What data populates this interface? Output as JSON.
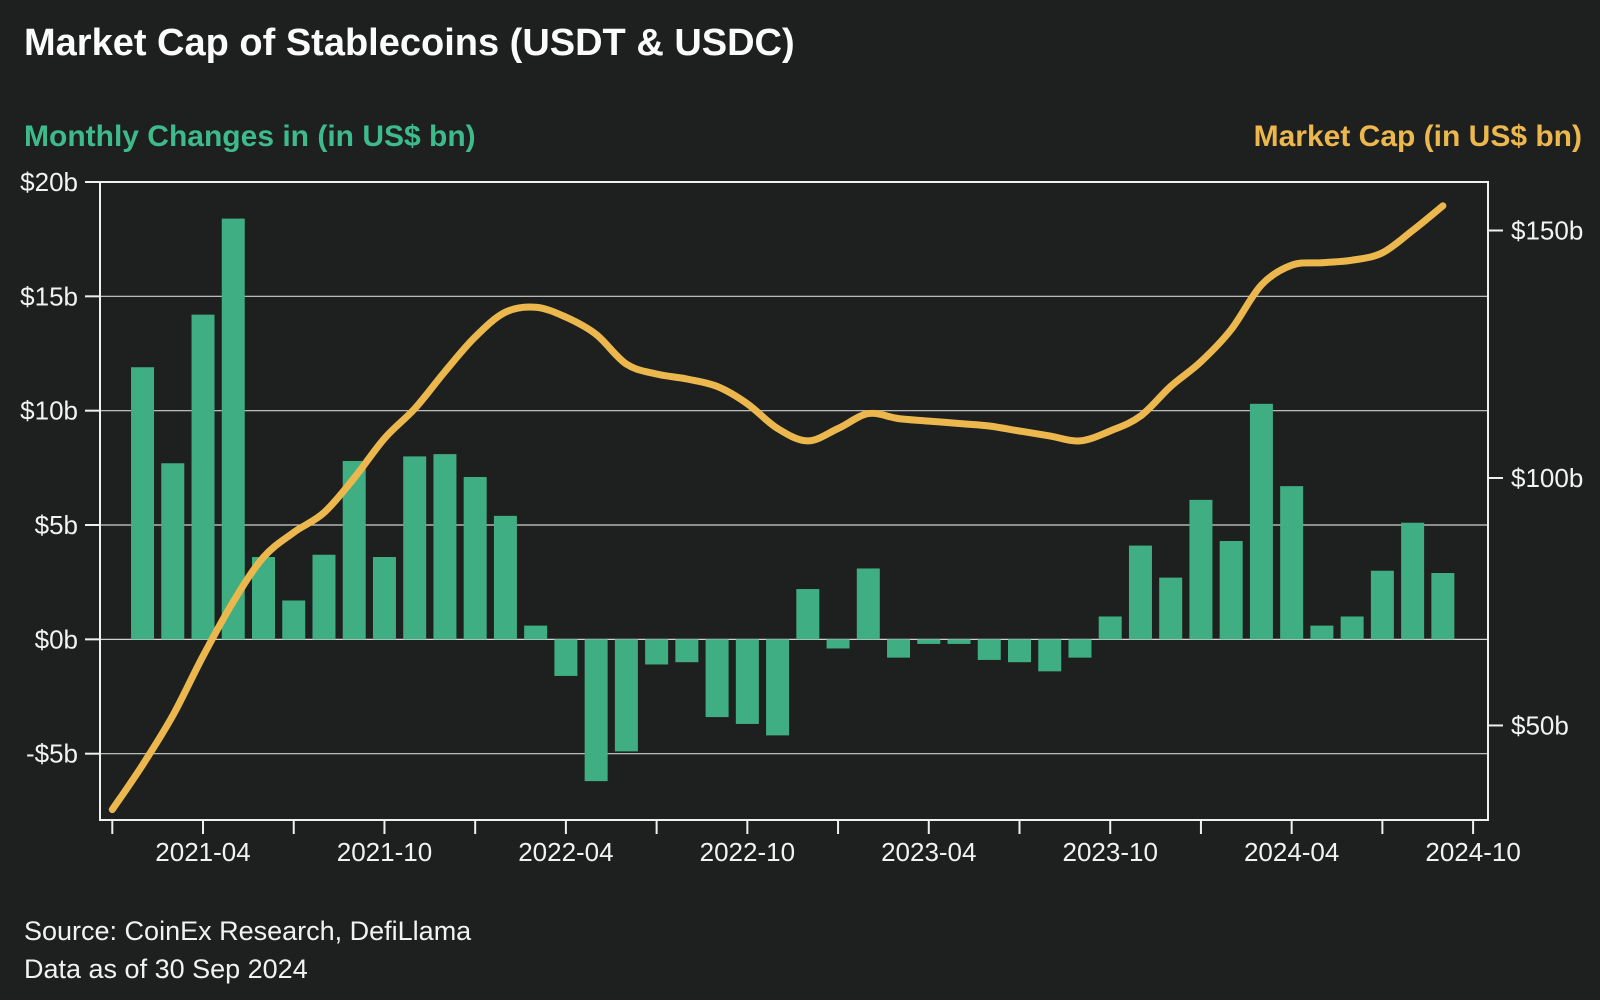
{
  "header": {
    "title": "Market Cap of Stablecoins (USDT & USDC)",
    "left_series_label": "Monthly Changes in (in US$ bn)",
    "right_series_label": "Market Cap (in US$ bn)"
  },
  "footer": {
    "source": "Source: CoinEx Research, DefiLlama",
    "as_of": "Data as of 30 Sep 2024"
  },
  "colors": {
    "background": "#1e201f",
    "bar": "#3fae82",
    "line": "#ecb84e",
    "grid": "#d0d0d0",
    "border": "#f0f0f0",
    "tick_text": "#f2f2f2",
    "green_label": "#3dbb8c",
    "gold_label": "#ecb84e"
  },
  "chart_data": {
    "type": "bar+line dual-axis",
    "title": "Market Cap of Stablecoins (USDT & USDC)",
    "grid": "horizontal gridlines at left-axis ticks",
    "legend_position": "labels above chart (left green = bars, right gold = line)",
    "x_axis": {
      "domain_start": "2021-01",
      "domain_end": "2024-10",
      "labeled_ticks": [
        "2021-04",
        "2021-10",
        "2022-04",
        "2022-10",
        "2023-04",
        "2023-10",
        "2024-04",
        "2024-10"
      ],
      "minor_ticks": [
        "2021-01",
        "2021-07",
        "2022-01",
        "2022-07",
        "2023-01",
        "2023-07",
        "2024-01",
        "2024-07"
      ]
    },
    "left_axis": {
      "title": "Monthly Changes in (in US$ bn)",
      "tick_labels": [
        "$20b",
        "$15b",
        "$10b",
        "$5b",
        "$0b",
        "-$5b"
      ],
      "tick_values": [
        20,
        15,
        10,
        5,
        0,
        -5
      ],
      "range": [
        -7.9,
        20
      ]
    },
    "right_axis": {
      "title": "Market Cap (in US$ bn)",
      "tick_labels": [
        "$150b",
        "$100b",
        "$50b"
      ],
      "tick_values": [
        150,
        100,
        50
      ],
      "range": [
        30.9,
        159.8
      ]
    },
    "bars": {
      "name": "Monthly Changes in (in US$ bn)",
      "axis": "left",
      "unit": "US$ bn",
      "data": [
        {
          "month": "2021-02",
          "value": 11.9
        },
        {
          "month": "2021-03",
          "value": 7.7
        },
        {
          "month": "2021-04",
          "value": 14.2
        },
        {
          "month": "2021-05",
          "value": 18.4
        },
        {
          "month": "2021-06",
          "value": 3.6
        },
        {
          "month": "2021-07",
          "value": 1.7
        },
        {
          "month": "2021-08",
          "value": 3.7
        },
        {
          "month": "2021-09",
          "value": 7.8
        },
        {
          "month": "2021-10",
          "value": 3.6
        },
        {
          "month": "2021-11",
          "value": 8.0
        },
        {
          "month": "2021-12",
          "value": 8.1
        },
        {
          "month": "2022-01",
          "value": 7.1
        },
        {
          "month": "2022-02",
          "value": 5.4
        },
        {
          "month": "2022-03",
          "value": 0.6
        },
        {
          "month": "2022-04",
          "value": -1.6
        },
        {
          "month": "2022-05",
          "value": -6.2
        },
        {
          "month": "2022-06",
          "value": -4.9
        },
        {
          "month": "2022-07",
          "value": -1.1
        },
        {
          "month": "2022-08",
          "value": -1.0
        },
        {
          "month": "2022-09",
          "value": -3.4
        },
        {
          "month": "2022-10",
          "value": -3.7
        },
        {
          "month": "2022-11",
          "value": -4.2
        },
        {
          "month": "2022-12",
          "value": 2.2
        },
        {
          "month": "2023-01",
          "value": -0.4
        },
        {
          "month": "2023-02",
          "value": 3.1
        },
        {
          "month": "2023-03",
          "value": -0.8
        },
        {
          "month": "2023-04",
          "value": -0.2
        },
        {
          "month": "2023-05",
          "value": -0.2
        },
        {
          "month": "2023-06",
          "value": -0.9
        },
        {
          "month": "2023-07",
          "value": -1.0
        },
        {
          "month": "2023-08",
          "value": -1.4
        },
        {
          "month": "2023-09",
          "value": -0.8
        },
        {
          "month": "2023-10",
          "value": 1.0
        },
        {
          "month": "2023-11",
          "value": 4.1
        },
        {
          "month": "2023-12",
          "value": 2.7
        },
        {
          "month": "2024-01",
          "value": 6.1
        },
        {
          "month": "2024-02",
          "value": 4.3
        },
        {
          "month": "2024-03",
          "value": 10.3
        },
        {
          "month": "2024-04",
          "value": 6.7
        },
        {
          "month": "2024-05",
          "value": 0.6
        },
        {
          "month": "2024-06",
          "value": 1.0
        },
        {
          "month": "2024-07",
          "value": 3.0
        },
        {
          "month": "2024-08",
          "value": 5.1
        },
        {
          "month": "2024-09",
          "value": 2.9
        }
      ]
    },
    "line": {
      "name": "Market Cap (in US$ bn)",
      "axis": "right",
      "unit": "US$ bn",
      "data": [
        {
          "month": "2021-01",
          "value": 33
        },
        {
          "month": "2021-02",
          "value": 42
        },
        {
          "month": "2021-03",
          "value": 52
        },
        {
          "month": "2021-04",
          "value": 64
        },
        {
          "month": "2021-05",
          "value": 75
        },
        {
          "month": "2021-06",
          "value": 84
        },
        {
          "month": "2021-07",
          "value": 89
        },
        {
          "month": "2021-08",
          "value": 93
        },
        {
          "month": "2021-09",
          "value": 100
        },
        {
          "month": "2021-10",
          "value": 108
        },
        {
          "month": "2021-11",
          "value": 114
        },
        {
          "month": "2021-12",
          "value": 121.5
        },
        {
          "month": "2022-01",
          "value": 128.5
        },
        {
          "month": "2022-02",
          "value": 133.5
        },
        {
          "month": "2022-03",
          "value": 134.5
        },
        {
          "month": "2022-04",
          "value": 132.5
        },
        {
          "month": "2022-05",
          "value": 129
        },
        {
          "month": "2022-06",
          "value": 123
        },
        {
          "month": "2022-07",
          "value": 121
        },
        {
          "month": "2022-08",
          "value": 120
        },
        {
          "month": "2022-09",
          "value": 118.5
        },
        {
          "month": "2022-10",
          "value": 115
        },
        {
          "month": "2022-11",
          "value": 110
        },
        {
          "month": "2022-12",
          "value": 107.5
        },
        {
          "month": "2023-01",
          "value": 110
        },
        {
          "month": "2023-02",
          "value": 113
        },
        {
          "month": "2023-03",
          "value": 112
        },
        {
          "month": "2023-04",
          "value": 111.5
        },
        {
          "month": "2023-05",
          "value": 111
        },
        {
          "month": "2023-06",
          "value": 110.5
        },
        {
          "month": "2023-07",
          "value": 109.5
        },
        {
          "month": "2023-08",
          "value": 108.5
        },
        {
          "month": "2023-09",
          "value": 107.5
        },
        {
          "month": "2023-10",
          "value": 109.5
        },
        {
          "month": "2023-11",
          "value": 112.5
        },
        {
          "month": "2023-12",
          "value": 118.5
        },
        {
          "month": "2024-01",
          "value": 123.5
        },
        {
          "month": "2024-02",
          "value": 130
        },
        {
          "month": "2024-03",
          "value": 139
        },
        {
          "month": "2024-04",
          "value": 143
        },
        {
          "month": "2024-05",
          "value": 143.5
        },
        {
          "month": "2024-06",
          "value": 144
        },
        {
          "month": "2024-07",
          "value": 145.5
        },
        {
          "month": "2024-08",
          "value": 150
        },
        {
          "month": "2024-09",
          "value": 155
        }
      ]
    }
  }
}
